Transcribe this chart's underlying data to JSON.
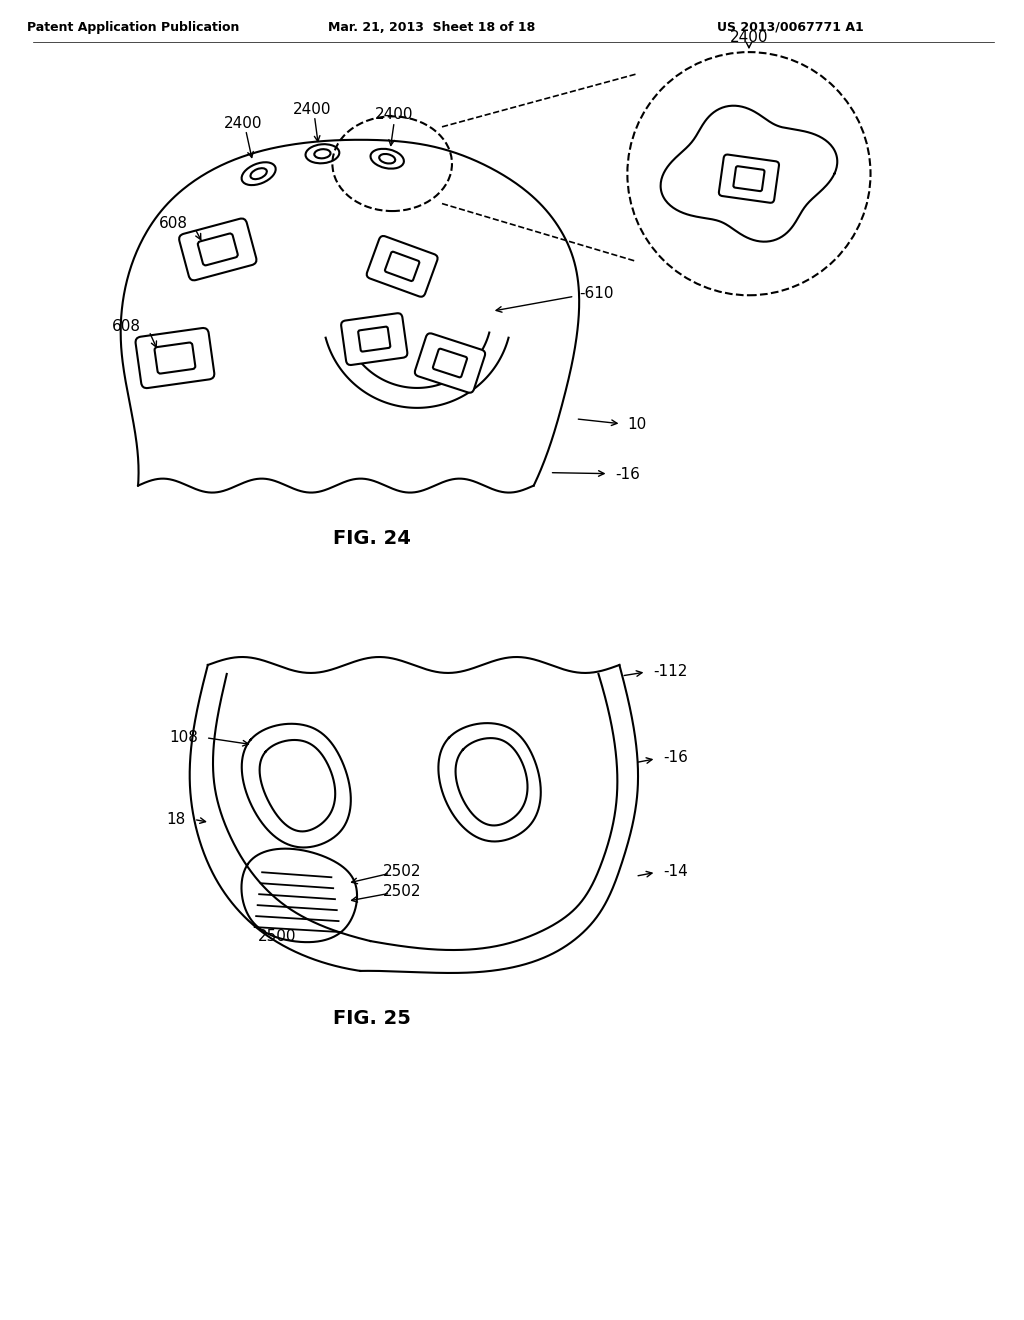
{
  "background_color": "#ffffff",
  "header_left": "Patent Application Publication",
  "header_mid": "Mar. 21, 2013  Sheet 18 of 18",
  "header_right": "US 2013/0067771 A1",
  "fig24_label": "FIG. 24",
  "fig25_label": "FIG. 25",
  "line_color": "#000000",
  "line_width": 1.5,
  "label_fontsize": 11
}
